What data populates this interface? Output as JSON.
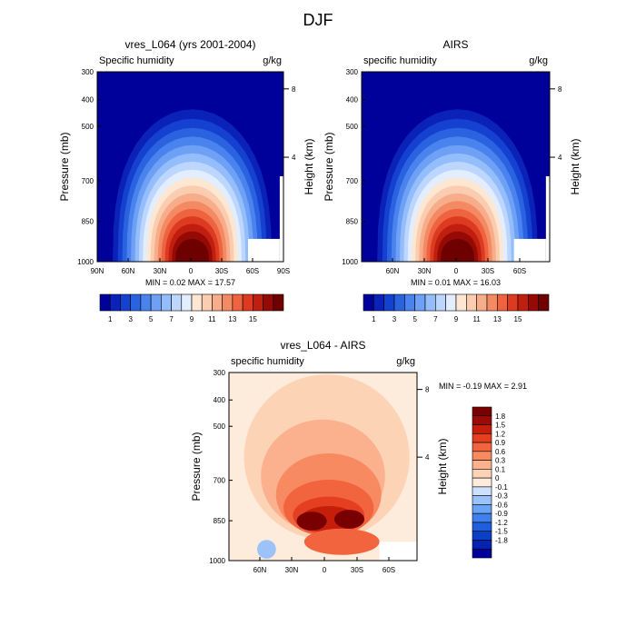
{
  "figure_title": "DJF",
  "colors": {
    "blue_ramp": [
      "#00009a",
      "#0a22b8",
      "#1441d0",
      "#2b62e0",
      "#4a82ee",
      "#6ea0f6",
      "#93bdfb",
      "#bcd6fd",
      "#e2edfe",
      "#fde7d2",
      "#fbcdb0",
      "#f8ad8a",
      "#f48a63",
      "#ee6441",
      "#dc3b21",
      "#c01e0f",
      "#960a05",
      "#6e0000"
    ],
    "diff_ramp": [
      "#00009a",
      "#0522b0",
      "#0a40c8",
      "#1f5fdc",
      "#3f80ec",
      "#6aa2f4",
      "#9cc2fa",
      "#cde0fd",
      "#fdebdb",
      "#fdd3b6",
      "#fbb08e",
      "#f88a62",
      "#f1643e",
      "#e33f20",
      "#c51f0c",
      "#9c0a05",
      "#780000"
    ]
  },
  "chart_data": [
    {
      "type": "heatmap",
      "title": "vres_L064 (yrs 2001-2004)",
      "variable": "Specific humidity",
      "units": "g/kg",
      "ylabel": "Pressure (mb)",
      "ylabel_right": "Height (km)",
      "x_ticks": [
        "90N",
        "60N",
        "30N",
        "0",
        "30S",
        "60S",
        "90S"
      ],
      "y_ticks": [
        "300",
        "400",
        "500",
        "700",
        "850",
        "1000"
      ],
      "y_ticks_right": [
        "8",
        "4"
      ],
      "ylim": [
        1000,
        300
      ],
      "stats": {
        "min_label": "MIN =",
        "min": "0.02",
        "max_label": "MAX =",
        "max": "17.57"
      },
      "colorbar_labels": [
        "1",
        "3",
        "5",
        "7",
        "9",
        "11",
        "13",
        "15"
      ]
    },
    {
      "type": "heatmap",
      "title": "AIRS",
      "variable": "specific humidity",
      "units": "g/kg",
      "ylabel": "Pressure (mb)",
      "ylabel_right": "Height (km)",
      "x_ticks": [
        "60N",
        "30N",
        "0",
        "30S",
        "60S"
      ],
      "y_ticks": [
        "300",
        "400",
        "500",
        "700",
        "850",
        "1000"
      ],
      "y_ticks_right": [
        "8",
        "4"
      ],
      "ylim": [
        1000,
        300
      ],
      "stats": {
        "min_label": "MIN =",
        "min": "0.01",
        "max_label": "MAX =",
        "max": "16.03"
      },
      "colorbar_labels": [
        "1",
        "3",
        "5",
        "7",
        "9",
        "11",
        "13",
        "15"
      ]
    },
    {
      "type": "heatmap",
      "title": "vres_L064 - AIRS",
      "variable": "specific humidity",
      "units": "g/kg",
      "ylabel": "Pressure (mb)",
      "ylabel_right": "Height (km)",
      "x_ticks": [
        "60N",
        "30N",
        "0",
        "30S",
        "60S"
      ],
      "y_ticks": [
        "300",
        "400",
        "500",
        "700",
        "850",
        "1000"
      ],
      "y_ticks_right": [
        "8",
        "4"
      ],
      "ylim": [
        1000,
        300
      ],
      "stats": {
        "min_label": "MIN =",
        "min": "-0.19",
        "max_label": "MAX =",
        "max": "2.91"
      },
      "colorbar_labels": [
        "1.8",
        "1.5",
        "1.2",
        "0.9",
        "0.6",
        "0.3",
        "0.1",
        "0",
        "-0.1",
        "-0.3",
        "-0.6",
        "-0.9",
        "-1.2",
        "-1.5",
        "-1.8"
      ]
    }
  ]
}
